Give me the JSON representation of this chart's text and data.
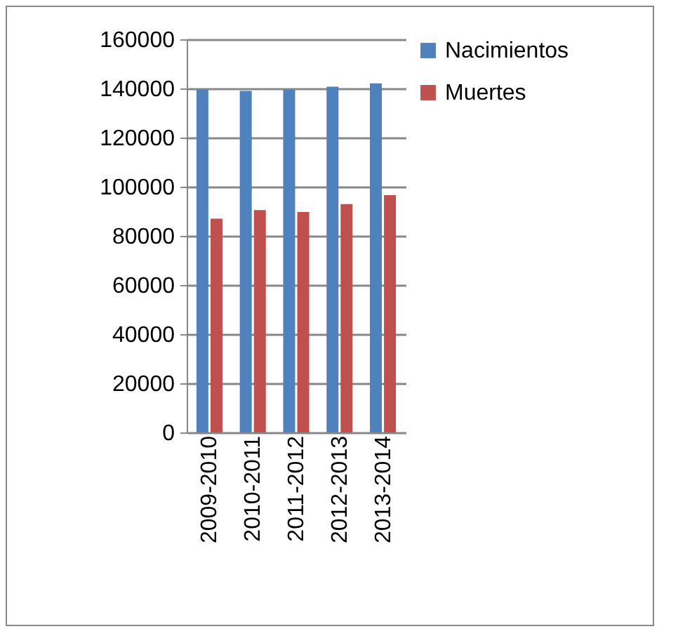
{
  "chart_data": {
    "type": "bar",
    "categories": [
      "2009-2010",
      "2010-2011",
      "2011-2012",
      "2012-2013",
      "2013-2014"
    ],
    "series": [
      {
        "name": "Nacimientos",
        "color": "#4f81bd",
        "values": [
          139400,
          139000,
          139400,
          140700,
          142100
        ]
      },
      {
        "name": "Muertes",
        "color": "#c0504d",
        "values": [
          87000,
          90500,
          89700,
          92900,
          96600
        ]
      }
    ],
    "ylim": [
      0,
      160000
    ],
    "yticks": [
      0,
      20000,
      40000,
      60000,
      80000,
      100000,
      120000,
      140000,
      160000
    ],
    "grid": "y",
    "legend": "right"
  }
}
